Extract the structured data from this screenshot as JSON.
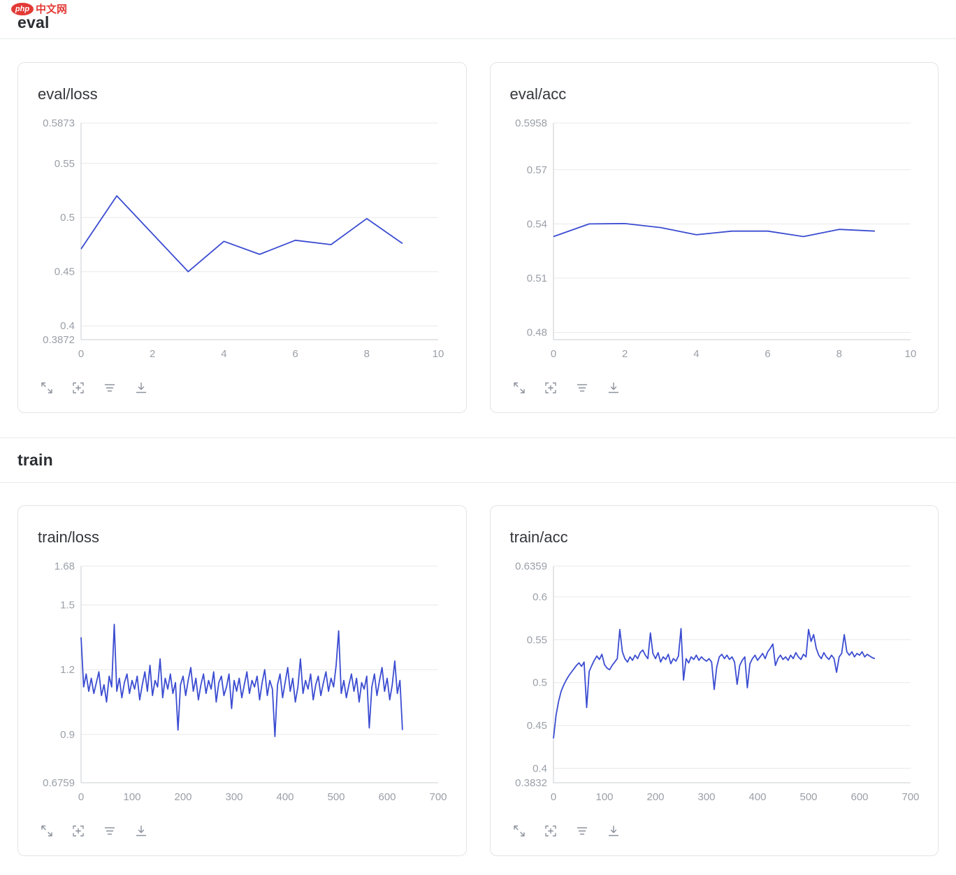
{
  "colors": {
    "accent": "#3b4cd1",
    "grid": "#e8e8e8",
    "axis": "#c8ccd2",
    "tick": "#9aa0a8",
    "logo_red": "#e23a36"
  },
  "logo": {
    "badge": "php",
    "brand": "中文网"
  },
  "sections": [
    {
      "title": "eval"
    },
    {
      "title": "train"
    }
  ],
  "toolbar_icons": [
    "fullscreen-icon",
    "restore-icon",
    "filter-lines-icon",
    "download-icon"
  ],
  "chart_data": [
    {
      "type": "line",
      "title": "eval/loss",
      "section": "eval",
      "xlim": [
        0,
        10
      ],
      "ylim": [
        0.3872,
        0.5873
      ],
      "xticks": [
        0,
        2,
        4,
        6,
        8,
        10
      ],
      "yticks": [
        0.5873,
        0.55,
        0.5,
        0.45,
        0.4,
        0.3872
      ],
      "x": [
        0,
        1,
        2,
        3,
        4,
        5,
        6,
        7,
        8,
        9
      ],
      "y": [
        0.471,
        0.52,
        0.485,
        0.45,
        0.478,
        0.466,
        0.479,
        0.475,
        0.499,
        0.476
      ]
    },
    {
      "type": "line",
      "title": "eval/acc",
      "section": "eval",
      "xlim": [
        0,
        10
      ],
      "ylim": [
        0.476,
        0.5958
      ],
      "xticks": [
        0,
        2,
        4,
        6,
        8,
        10
      ],
      "yticks": [
        0.5958,
        0.57,
        0.54,
        0.51,
        0.48
      ],
      "x": [
        0,
        1,
        2,
        3,
        4,
        5,
        6,
        7,
        8,
        9
      ],
      "y": [
        0.533,
        0.54,
        0.5402,
        0.538,
        0.534,
        0.536,
        0.536,
        0.533,
        0.537,
        0.536
      ]
    },
    {
      "type": "line",
      "title": "train/loss",
      "section": "train",
      "xlim": [
        0,
        700
      ],
      "ylim": [
        0.6759,
        1.68
      ],
      "xticks": [
        0,
        100,
        200,
        300,
        400,
        500,
        600,
        700
      ],
      "yticks": [
        1.68,
        1.5,
        1.2,
        0.9,
        0.6759
      ],
      "x": {
        "start": 0,
        "step": 5
      },
      "y": [
        1.35,
        1.12,
        1.18,
        1.1,
        1.16,
        1.09,
        1.14,
        1.19,
        1.08,
        1.13,
        1.05,
        1.17,
        1.12,
        1.41,
        1.1,
        1.16,
        1.07,
        1.14,
        1.18,
        1.09,
        1.15,
        1.11,
        1.17,
        1.06,
        1.13,
        1.19,
        1.1,
        1.22,
        1.08,
        1.15,
        1.12,
        1.25,
        1.07,
        1.16,
        1.11,
        1.18,
        1.09,
        1.14,
        0.92,
        1.13,
        1.17,
        1.08,
        1.15,
        1.21,
        1.1,
        1.16,
        1.06,
        1.13,
        1.18,
        1.09,
        1.15,
        1.11,
        1.19,
        1.05,
        1.14,
        1.17,
        1.08,
        1.12,
        1.18,
        1.02,
        1.15,
        1.1,
        1.16,
        1.07,
        1.13,
        1.19,
        1.09,
        1.15,
        1.12,
        1.17,
        1.06,
        1.14,
        1.2,
        1.08,
        1.15,
        1.11,
        0.89,
        1.13,
        1.18,
        1.07,
        1.14,
        1.21,
        1.1,
        1.16,
        1.05,
        1.12,
        1.25,
        1.09,
        1.15,
        1.11,
        1.18,
        1.06,
        1.13,
        1.17,
        1.08,
        1.14,
        1.19,
        1.1,
        1.16,
        1.12,
        1.22,
        1.38,
        1.09,
        1.15,
        1.07,
        1.13,
        1.18,
        1.1,
        1.16,
        1.05,
        1.14,
        1.11,
        1.17,
        0.93,
        1.12,
        1.18,
        1.08,
        1.15,
        1.21,
        1.1,
        1.16,
        1.06,
        1.13,
        1.24,
        1.09,
        1.15,
        0.92
      ]
    },
    {
      "type": "line",
      "title": "train/acc",
      "section": "train",
      "xlim": [
        0,
        700
      ],
      "ylim": [
        0.3832,
        0.6359
      ],
      "xticks": [
        0,
        100,
        200,
        300,
        400,
        500,
        600,
        700
      ],
      "yticks": [
        0.6359,
        0.6,
        0.55,
        0.5,
        0.45,
        0.4,
        0.3832
      ],
      "x": {
        "start": 0,
        "step": 5
      },
      "y": [
        0.435,
        0.462,
        0.478,
        0.49,
        0.497,
        0.503,
        0.508,
        0.512,
        0.516,
        0.52,
        0.523,
        0.519,
        0.524,
        0.471,
        0.513,
        0.52,
        0.526,
        0.531,
        0.527,
        0.533,
        0.521,
        0.517,
        0.515,
        0.52,
        0.524,
        0.528,
        0.562,
        0.536,
        0.528,
        0.524,
        0.53,
        0.526,
        0.532,
        0.528,
        0.535,
        0.538,
        0.532,
        0.528,
        0.558,
        0.534,
        0.528,
        0.535,
        0.524,
        0.53,
        0.527,
        0.533,
        0.522,
        0.528,
        0.525,
        0.531,
        0.563,
        0.503,
        0.528,
        0.523,
        0.53,
        0.527,
        0.532,
        0.526,
        0.53,
        0.527,
        0.525,
        0.528,
        0.524,
        0.492,
        0.518,
        0.53,
        0.533,
        0.528,
        0.532,
        0.527,
        0.53,
        0.524,
        0.498,
        0.52,
        0.526,
        0.53,
        0.494,
        0.522,
        0.528,
        0.532,
        0.526,
        0.53,
        0.534,
        0.528,
        0.536,
        0.54,
        0.545,
        0.52,
        0.528,
        0.532,
        0.527,
        0.53,
        0.526,
        0.532,
        0.528,
        0.535,
        0.53,
        0.527,
        0.533,
        0.53,
        0.562,
        0.548,
        0.556,
        0.54,
        0.532,
        0.528,
        0.535,
        0.53,
        0.527,
        0.532,
        0.528,
        0.512,
        0.53,
        0.534,
        0.556,
        0.536,
        0.532,
        0.536,
        0.53,
        0.534,
        0.532,
        0.536,
        0.53,
        0.533,
        0.531,
        0.529,
        0.528
      ]
    }
  ]
}
